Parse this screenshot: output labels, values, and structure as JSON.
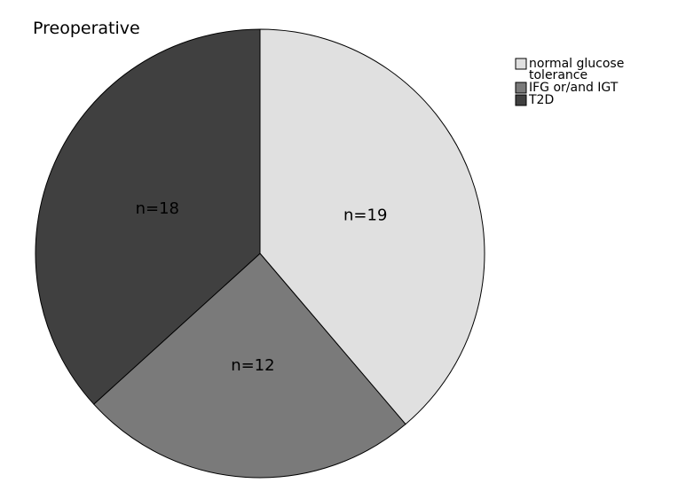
{
  "chart_data": {
    "type": "pie",
    "title": "Preoperative",
    "slices": [
      {
        "name": "normal glucose tolerance",
        "legend_lines": [
          "normal glucose",
          "tolerance"
        ],
        "value": 19,
        "label": "n=19",
        "color": "#e0e0e0"
      },
      {
        "name": "IFG or/and IGT",
        "legend_lines": [
          "IFG or/and IGT"
        ],
        "value": 12,
        "label": "n=12",
        "color": "#7a7a7a"
      },
      {
        "name": "T2D",
        "legend_lines": [
          "T2D"
        ],
        "value": 18,
        "label": "n=18",
        "color": "#404040"
      }
    ],
    "start": "12 o'clock",
    "direction": "clockwise",
    "legend_position": "top-right"
  }
}
